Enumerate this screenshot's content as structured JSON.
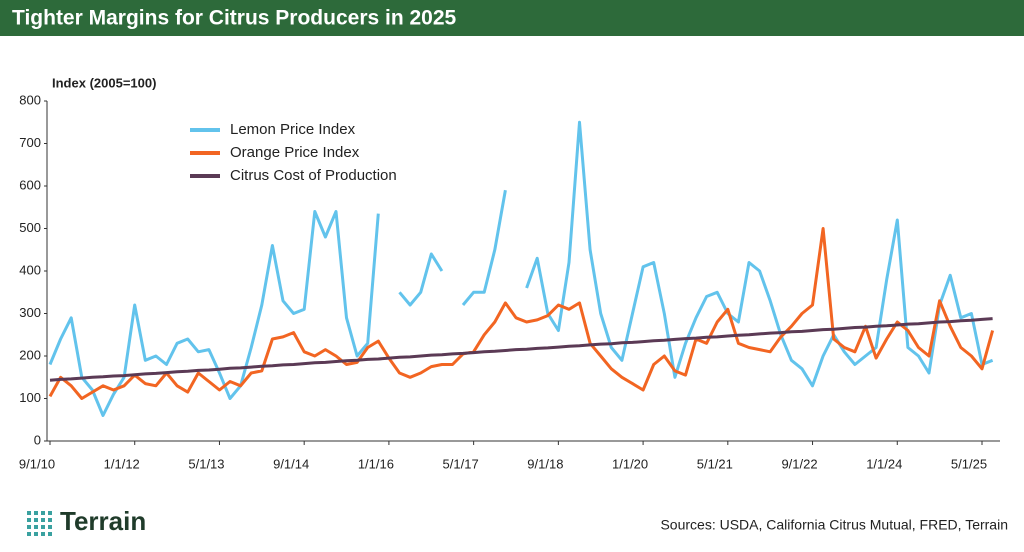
{
  "brand": "Terrain",
  "chart_data": {
    "type": "line",
    "title": "Tighter Margins for Citrus Producers in 2025",
    "y_label": "Index (2005=100)",
    "source": "Sources: USDA, California Citrus Mutual, FRED, Terrain",
    "categories": [
      "9/1/10",
      null,
      null,
      null,
      null,
      null,
      null,
      null,
      "1/1/12",
      null,
      null,
      null,
      null,
      null,
      null,
      null,
      "5/1/13",
      null,
      null,
      null,
      null,
      null,
      null,
      null,
      "9/1/14",
      null,
      null,
      null,
      null,
      null,
      null,
      null,
      "1/1/16",
      null,
      null,
      null,
      null,
      null,
      null,
      null,
      "5/1/17",
      null,
      null,
      null,
      null,
      null,
      null,
      null,
      "9/1/18",
      null,
      null,
      null,
      null,
      null,
      null,
      null,
      "1/1/20",
      null,
      null,
      null,
      null,
      null,
      null,
      null,
      "5/1/21",
      null,
      null,
      null,
      null,
      null,
      null,
      null,
      "9/1/22",
      null,
      null,
      null,
      null,
      null,
      null,
      null,
      "1/1/24",
      null,
      null,
      null,
      null,
      null,
      null,
      null,
      "5/1/25",
      null
    ],
    "ylim": [
      0,
      800
    ],
    "yticks": [
      0,
      100,
      200,
      300,
      400,
      500,
      600,
      700,
      800
    ],
    "grid": false,
    "legend": "top-left",
    "series": [
      {
        "name": "Lemon Price Index",
        "color": "#62c3ec",
        "values": [
          180,
          240,
          290,
          150,
          120,
          60,
          110,
          150,
          320,
          190,
          200,
          180,
          230,
          240,
          210,
          215,
          160,
          100,
          130,
          220,
          320,
          460,
          330,
          300,
          310,
          540,
          480,
          540,
          290,
          200,
          230,
          535,
          null,
          350,
          320,
          350,
          440,
          400,
          null,
          320,
          350,
          350,
          450,
          590,
          null,
          360,
          430,
          300,
          260,
          420,
          750,
          450,
          300,
          220,
          190,
          300,
          410,
          420,
          300,
          150,
          230,
          290,
          340,
          350,
          300,
          280,
          420,
          400,
          330,
          250,
          190,
          170,
          130,
          200,
          250,
          210,
          180,
          200,
          220,
          380,
          520,
          220,
          200,
          160,
          320,
          390,
          290,
          300,
          180,
          190
        ]
      },
      {
        "name": "Orange Price Index",
        "color": "#f26522",
        "values": [
          105,
          150,
          130,
          100,
          115,
          130,
          120,
          130,
          155,
          135,
          130,
          160,
          130,
          115,
          160,
          140,
          120,
          140,
          130,
          160,
          165,
          240,
          245,
          255,
          210,
          200,
          215,
          200,
          180,
          185,
          220,
          235,
          195,
          160,
          150,
          160,
          175,
          180,
          180,
          205,
          210,
          250,
          280,
          325,
          290,
          280,
          285,
          295,
          320,
          310,
          325,
          230,
          200,
          170,
          150,
          135,
          120,
          180,
          200,
          165,
          155,
          240,
          230,
          280,
          310,
          230,
          220,
          215,
          210,
          245,
          270,
          300,
          320,
          500,
          240,
          220,
          210,
          270,
          195,
          240,
          280,
          260,
          220,
          200,
          330,
          270,
          220,
          200,
          170,
          260
        ]
      },
      {
        "name": "Citrus Cost of Production",
        "color": "#5b3a55",
        "values": [
          143,
          145,
          146,
          148,
          150,
          151,
          153,
          154,
          156,
          158,
          159,
          161,
          163,
          164,
          166,
          167,
          169,
          171,
          172,
          174,
          176,
          177,
          179,
          180,
          182,
          184,
          185,
          187,
          189,
          190,
          192,
          193,
          195,
          197,
          198,
          200,
          202,
          203,
          205,
          206,
          208,
          210,
          211,
          213,
          215,
          216,
          218,
          219,
          221,
          223,
          224,
          226,
          228,
          229,
          231,
          232,
          234,
          236,
          237,
          239,
          241,
          242,
          244,
          245,
          247,
          249,
          250,
          252,
          254,
          255,
          257,
          258,
          260,
          262,
          263,
          265,
          267,
          268,
          270,
          271,
          273,
          275,
          276,
          278,
          280,
          281,
          283,
          284,
          286,
          288
        ]
      }
    ]
  }
}
